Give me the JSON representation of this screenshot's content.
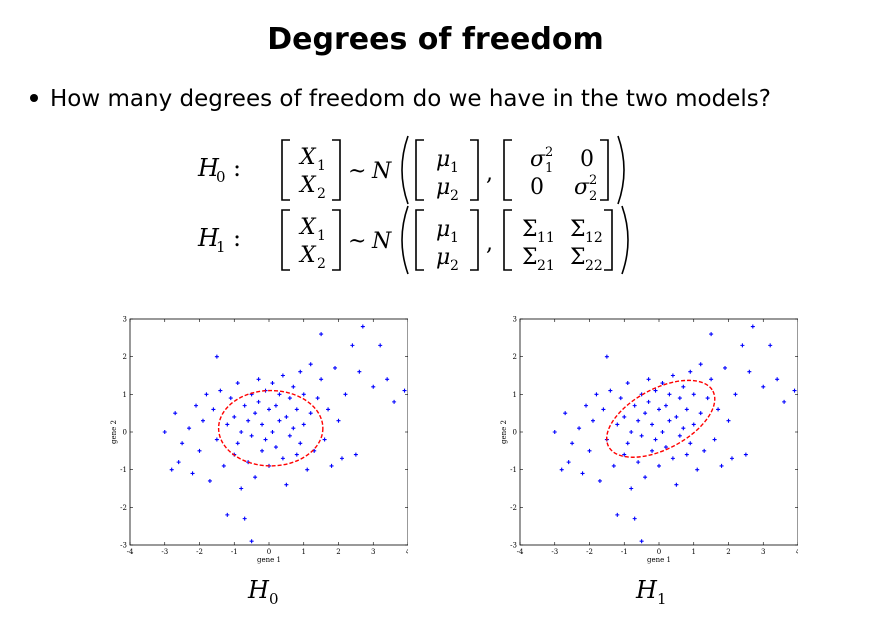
{
  "slide": {
    "title": "Degrees of freedom",
    "bullet": "How many degrees of freedom do we have in the two models?"
  },
  "equations": {
    "h0": {
      "label": "H",
      "label_sub": "0",
      "colon": ":",
      "cov": [
        [
          "σ",
          "2",
          "1",
          "0"
        ],
        [
          "0",
          "σ",
          "2",
          "2"
        ]
      ]
    },
    "h1": {
      "label": "H",
      "label_sub": "1",
      "colon": ":",
      "cov": [
        [
          "Σ",
          "11",
          "Σ",
          "12"
        ],
        [
          "Σ",
          "21",
          "Σ",
          "22"
        ]
      ]
    },
    "x_vector": [
      "X",
      "1",
      "X",
      "2"
    ],
    "mu_vector": [
      "μ",
      "1",
      "μ",
      "2"
    ],
    "dist": "N",
    "tilde": "~"
  },
  "chart_data": [
    {
      "type": "scatter",
      "caption": "H0",
      "xlabel": "gene 1",
      "ylabel": "gene 2",
      "xlim": [
        -4,
        4
      ],
      "ylim": [
        -3,
        3
      ],
      "xticks": [
        "-4",
        "-3",
        "-2",
        "-1",
        "0",
        "1",
        "2",
        "3",
        "4"
      ],
      "yticks": [
        "-3",
        "-2",
        "-1",
        "0",
        "1",
        "2",
        "3"
      ],
      "marker_color": "#0000ff",
      "ellipse": {
        "color": "#ff0000",
        "style": "dashed",
        "center": [
          0.05,
          0.1
        ],
        "rx": 1.5,
        "ry": 1.0,
        "angle_deg": 0
      },
      "points": [
        [
          -3.0,
          0.0
        ],
        [
          -2.8,
          -1.0
        ],
        [
          -2.7,
          0.5
        ],
        [
          -2.6,
          -0.8
        ],
        [
          -2.5,
          -0.3
        ],
        [
          -2.3,
          0.1
        ],
        [
          -2.2,
          -1.1
        ],
        [
          -2.1,
          0.7
        ],
        [
          -2.0,
          -0.5
        ],
        [
          -1.9,
          0.3
        ],
        [
          -1.8,
          1.0
        ],
        [
          -1.7,
          -1.3
        ],
        [
          -1.6,
          0.6
        ],
        [
          -1.5,
          -0.2
        ],
        [
          -1.5,
          2.0
        ],
        [
          -1.4,
          1.1
        ],
        [
          -1.3,
          -0.9
        ],
        [
          -1.2,
          0.2
        ],
        [
          -1.2,
          -2.2
        ],
        [
          -1.1,
          0.9
        ],
        [
          -1.0,
          -0.6
        ],
        [
          -1.0,
          0.4
        ],
        [
          -0.9,
          1.3
        ],
        [
          -0.9,
          -0.3
        ],
        [
          -0.8,
          0.0
        ],
        [
          -0.8,
          -1.5
        ],
        [
          -0.7,
          0.7
        ],
        [
          -0.7,
          -2.3
        ],
        [
          -0.6,
          0.3
        ],
        [
          -0.6,
          -0.8
        ],
        [
          -0.5,
          1.0
        ],
        [
          -0.5,
          -0.1
        ],
        [
          -0.4,
          0.5
        ],
        [
          -0.4,
          -1.2
        ],
        [
          -0.3,
          0.8
        ],
        [
          -0.3,
          1.4
        ],
        [
          -0.2,
          0.2
        ],
        [
          -0.2,
          -0.5
        ],
        [
          -0.1,
          1.1
        ],
        [
          -0.1,
          -0.2
        ],
        [
          0.0,
          0.6
        ],
        [
          0.0,
          -0.9
        ],
        [
          0.1,
          1.3
        ],
        [
          0.1,
          0.0
        ],
        [
          0.2,
          0.7
        ],
        [
          0.2,
          -0.4
        ],
        [
          0.3,
          1.0
        ],
        [
          0.3,
          0.3
        ],
        [
          0.4,
          -0.7
        ],
        [
          0.4,
          1.5
        ],
        [
          0.5,
          0.4
        ],
        [
          0.5,
          -1.4
        ],
        [
          0.6,
          0.9
        ],
        [
          0.6,
          -0.1
        ],
        [
          0.7,
          1.2
        ],
        [
          0.7,
          0.1
        ],
        [
          0.8,
          -0.6
        ],
        [
          0.8,
          0.6
        ],
        [
          0.9,
          1.6
        ],
        [
          0.9,
          -0.3
        ],
        [
          1.0,
          0.2
        ],
        [
          1.0,
          1.0
        ],
        [
          1.1,
          -1.0
        ],
        [
          1.2,
          0.5
        ],
        [
          1.2,
          1.8
        ],
        [
          1.3,
          -0.5
        ],
        [
          1.4,
          0.9
        ],
        [
          1.5,
          1.4
        ],
        [
          1.6,
          -0.2
        ],
        [
          1.7,
          0.6
        ],
        [
          1.8,
          -0.9
        ],
        [
          1.9,
          1.7
        ],
        [
          2.0,
          0.3
        ],
        [
          2.1,
          -0.7
        ],
        [
          2.2,
          1.0
        ],
        [
          2.4,
          2.3
        ],
        [
          2.5,
          -0.6
        ],
        [
          2.6,
          1.6
        ],
        [
          2.7,
          2.8
        ],
        [
          3.0,
          1.2
        ],
        [
          3.2,
          2.3
        ],
        [
          3.4,
          1.4
        ],
        [
          3.6,
          0.8
        ],
        [
          3.9,
          1.1
        ],
        [
          -0.5,
          -2.9
        ],
        [
          1.5,
          2.6
        ]
      ]
    },
    {
      "type": "scatter",
      "caption": "H1",
      "xlabel": "gene 1",
      "ylabel": "gene 2",
      "xlim": [
        -4,
        4
      ],
      "ylim": [
        -3,
        3
      ],
      "xticks": [
        "-4",
        "-3",
        "-2",
        "-1",
        "0",
        "1",
        "2",
        "3",
        "4"
      ],
      "yticks": [
        "-3",
        "-2",
        "-1",
        "0",
        "1",
        "2",
        "3"
      ],
      "marker_color": "#0000ff",
      "ellipse": {
        "color": "#ff0000",
        "style": "dashed",
        "center": [
          0.05,
          0.35
        ],
        "rx": 1.7,
        "ry": 0.8,
        "angle_deg": 28
      },
      "points": [
        [
          -3.0,
          0.0
        ],
        [
          -2.8,
          -1.0
        ],
        [
          -2.7,
          0.5
        ],
        [
          -2.6,
          -0.8
        ],
        [
          -2.5,
          -0.3
        ],
        [
          -2.3,
          0.1
        ],
        [
          -2.2,
          -1.1
        ],
        [
          -2.1,
          0.7
        ],
        [
          -2.0,
          -0.5
        ],
        [
          -1.9,
          0.3
        ],
        [
          -1.8,
          1.0
        ],
        [
          -1.7,
          -1.3
        ],
        [
          -1.6,
          0.6
        ],
        [
          -1.5,
          -0.2
        ],
        [
          -1.5,
          2.0
        ],
        [
          -1.4,
          1.1
        ],
        [
          -1.3,
          -0.9
        ],
        [
          -1.2,
          0.2
        ],
        [
          -1.2,
          -2.2
        ],
        [
          -1.1,
          0.9
        ],
        [
          -1.0,
          -0.6
        ],
        [
          -1.0,
          0.4
        ],
        [
          -0.9,
          1.3
        ],
        [
          -0.9,
          -0.3
        ],
        [
          -0.8,
          0.0
        ],
        [
          -0.8,
          -1.5
        ],
        [
          -0.7,
          0.7
        ],
        [
          -0.7,
          -2.3
        ],
        [
          -0.6,
          0.3
        ],
        [
          -0.6,
          -0.8
        ],
        [
          -0.5,
          1.0
        ],
        [
          -0.5,
          -0.1
        ],
        [
          -0.4,
          0.5
        ],
        [
          -0.4,
          -1.2
        ],
        [
          -0.3,
          0.8
        ],
        [
          -0.3,
          1.4
        ],
        [
          -0.2,
          0.2
        ],
        [
          -0.2,
          -0.5
        ],
        [
          -0.1,
          1.1
        ],
        [
          -0.1,
          -0.2
        ],
        [
          0.0,
          0.6
        ],
        [
          0.0,
          -0.9
        ],
        [
          0.1,
          1.3
        ],
        [
          0.1,
          0.0
        ],
        [
          0.2,
          0.7
        ],
        [
          0.2,
          -0.4
        ],
        [
          0.3,
          1.0
        ],
        [
          0.3,
          0.3
        ],
        [
          0.4,
          -0.7
        ],
        [
          0.4,
          1.5
        ],
        [
          0.5,
          0.4
        ],
        [
          0.5,
          -1.4
        ],
        [
          0.6,
          0.9
        ],
        [
          0.6,
          -0.1
        ],
        [
          0.7,
          1.2
        ],
        [
          0.7,
          0.1
        ],
        [
          0.8,
          -0.6
        ],
        [
          0.8,
          0.6
        ],
        [
          0.9,
          1.6
        ],
        [
          0.9,
          -0.3
        ],
        [
          1.0,
          0.2
        ],
        [
          1.0,
          1.0
        ],
        [
          1.1,
          -1.0
        ],
        [
          1.2,
          0.5
        ],
        [
          1.2,
          1.8
        ],
        [
          1.3,
          -0.5
        ],
        [
          1.4,
          0.9
        ],
        [
          1.5,
          1.4
        ],
        [
          1.6,
          -0.2
        ],
        [
          1.7,
          0.6
        ],
        [
          1.8,
          -0.9
        ],
        [
          1.9,
          1.7
        ],
        [
          2.0,
          0.3
        ],
        [
          2.1,
          -0.7
        ],
        [
          2.2,
          1.0
        ],
        [
          2.4,
          2.3
        ],
        [
          2.5,
          -0.6
        ],
        [
          2.6,
          1.6
        ],
        [
          2.7,
          2.8
        ],
        [
          3.0,
          1.2
        ],
        [
          3.2,
          2.3
        ],
        [
          3.4,
          1.4
        ],
        [
          3.6,
          0.8
        ],
        [
          3.9,
          1.1
        ],
        [
          -0.5,
          -2.9
        ],
        [
          1.5,
          2.6
        ]
      ]
    }
  ]
}
